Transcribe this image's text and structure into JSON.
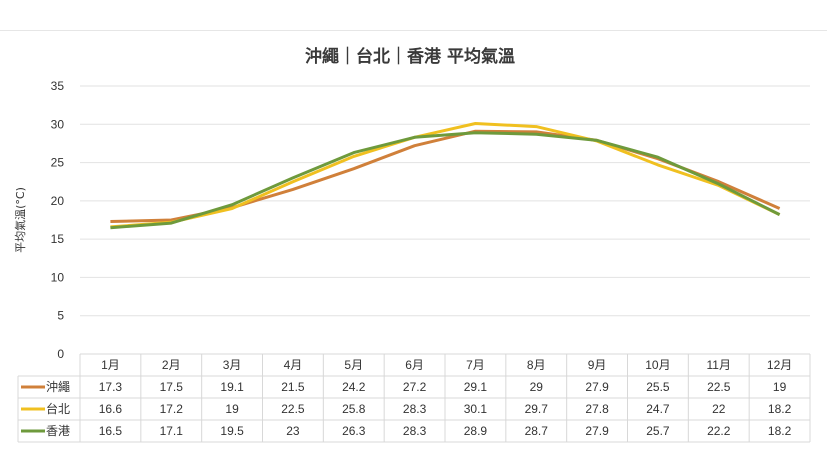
{
  "chart_data": {
    "type": "line",
    "title": "沖繩｜台北｜香港 平均氣溫",
    "xlabel": "",
    "ylabel": "平均氣溫(°C)",
    "ylim": [
      0,
      35
    ],
    "yticks": [
      0,
      5,
      10,
      15,
      20,
      25,
      30,
      35
    ],
    "grid": true,
    "legend": "data-table-below",
    "categories": [
      "1月",
      "2月",
      "3月",
      "4月",
      "5月",
      "6月",
      "7月",
      "8月",
      "9月",
      "10月",
      "11月",
      "12月"
    ],
    "series": [
      {
        "name": "沖繩",
        "color": "#D0803A",
        "values": [
          17.3,
          17.5,
          19.1,
          21.5,
          24.2,
          27.2,
          29.1,
          29,
          27.9,
          25.5,
          22.5,
          19
        ]
      },
      {
        "name": "台北",
        "color": "#F0C020",
        "values": [
          16.6,
          17.2,
          19,
          22.5,
          25.8,
          28.3,
          30.1,
          29.7,
          27.8,
          24.7,
          22,
          18.2
        ]
      },
      {
        "name": "香港",
        "color": "#6E9A3C",
        "values": [
          16.5,
          17.1,
          19.5,
          23,
          26.3,
          28.3,
          28.9,
          28.7,
          27.9,
          25.7,
          22.2,
          18.2
        ]
      }
    ]
  }
}
